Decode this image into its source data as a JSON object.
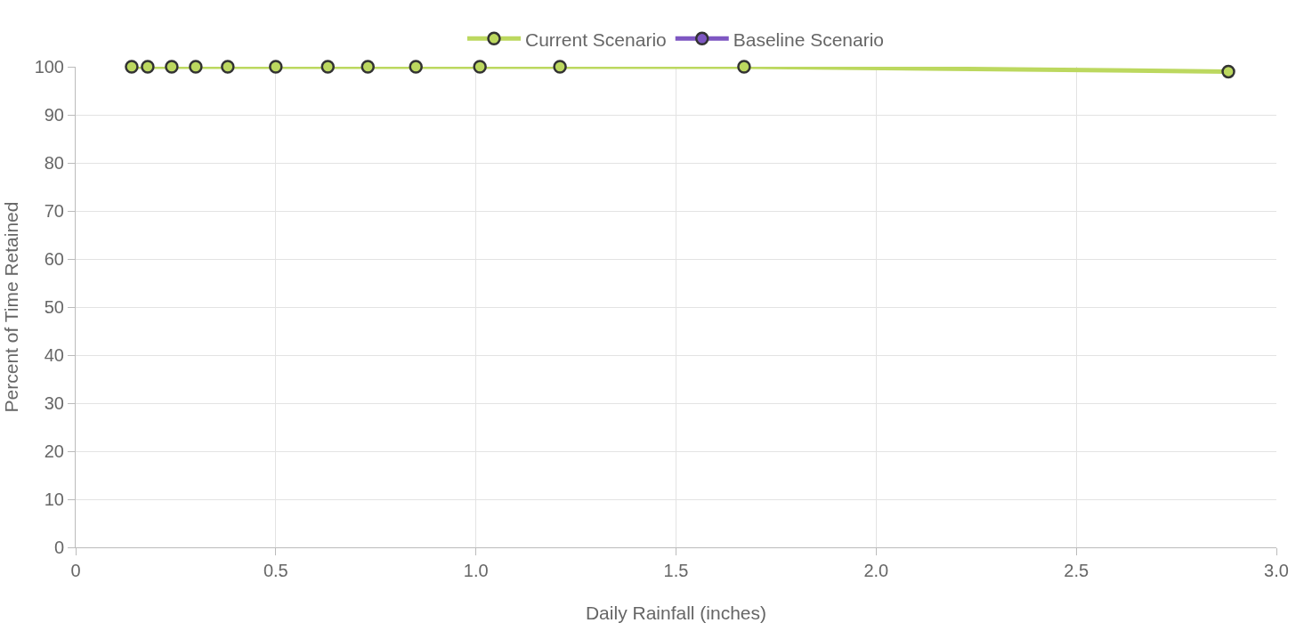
{
  "chart_data": {
    "type": "line",
    "xlabel": "Daily Rainfall (inches)",
    "ylabel": "Percent of Time Retained",
    "x": [
      0.14,
      0.18,
      0.24,
      0.3,
      0.38,
      0.5,
      0.63,
      0.73,
      0.85,
      1.01,
      1.21,
      1.67,
      2.88
    ],
    "series": [
      {
        "name": "Current Scenario",
        "color": "#bcd85f",
        "values": [
          100,
          100,
          100,
          100,
          100,
          100,
          100,
          100,
          100,
          100,
          100,
          100,
          99
        ]
      },
      {
        "name": "Baseline Scenario",
        "color": "#7e57c2",
        "values": [
          null,
          null,
          null,
          null,
          null,
          null,
          null,
          null,
          null,
          null,
          null,
          null,
          null
        ]
      }
    ],
    "xlim": [
      0,
      3.0
    ],
    "xticks": [
      0,
      {
        "value": 0.5,
        "label": "0.5"
      },
      {
        "value": 1.0,
        "label": "1.0"
      },
      {
        "value": 1.5,
        "label": "1.5"
      },
      {
        "value": 2.0,
        "label": "2.0"
      },
      {
        "value": 2.5,
        "label": "2.5"
      },
      {
        "value": 3.0,
        "label": "3.0"
      }
    ],
    "ylim": [
      0,
      100
    ],
    "yticks": [
      0,
      10,
      20,
      30,
      40,
      50,
      60,
      70,
      80,
      90,
      100
    ],
    "grid": true,
    "legend": "top",
    "marker": "circle",
    "line_style": "solid"
  }
}
